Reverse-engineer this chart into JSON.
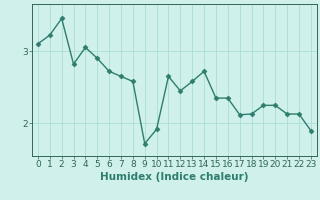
{
  "x": [
    0,
    1,
    2,
    3,
    4,
    5,
    6,
    7,
    8,
    9,
    10,
    11,
    12,
    13,
    14,
    15,
    16,
    17,
    18,
    19,
    20,
    21,
    22,
    23
  ],
  "y": [
    3.1,
    3.22,
    3.45,
    2.82,
    3.05,
    2.9,
    2.72,
    2.65,
    2.58,
    1.72,
    1.92,
    2.65,
    2.45,
    2.58,
    2.72,
    2.35,
    2.35,
    2.12,
    2.13,
    2.25,
    2.25,
    2.13,
    2.13,
    1.9
  ],
  "line_color": "#2e7d6e",
  "marker": "D",
  "markersize": 2.5,
  "linewidth": 1.0,
  "xlabel": "Humidex (Indice chaleur)",
  "yticks": [
    2,
    3
  ],
  "ylim": [
    1.55,
    3.65
  ],
  "xlim": [
    -0.5,
    23.5
  ],
  "bg_color": "#cff0eb",
  "grid_color": "#aaddd6",
  "axis_color": "#336655",
  "xlabel_fontsize": 7.5,
  "tick_fontsize": 6.5
}
